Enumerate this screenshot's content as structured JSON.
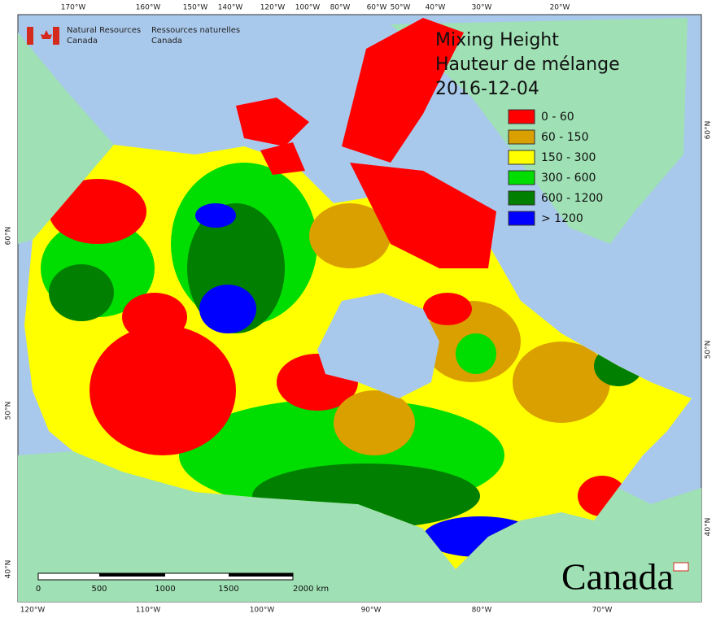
{
  "header": {
    "department_en": [
      "Natural Resources",
      "Canada"
    ],
    "department_fr": [
      "Ressources naturelles",
      "Canada"
    ]
  },
  "title": [
    "Mixing Height",
    "Hauteur de mélange",
    "2016-12-04"
  ],
  "legend": [
    {
      "label": "0 - 60",
      "color": "#ff0000"
    },
    {
      "label": "60 - 150",
      "color": "#daa000"
    },
    {
      "label": "150 - 300",
      "color": "#ffff00"
    },
    {
      "label": "300 - 600",
      "color": "#00dd00"
    },
    {
      "label": "600 - 1200",
      "color": "#007f00"
    },
    {
      "label": "> 1200",
      "color": "#0000ff"
    }
  ],
  "axes": {
    "top": [
      "170°W",
      "160°W",
      "150°W",
      "140°W",
      "120°W",
      "100°W",
      "80°W",
      "60°W",
      "50°W",
      "40°W",
      "30°W",
      "20°W"
    ],
    "bottom": [
      "120°W",
      "110°W",
      "100°W",
      "90°W",
      "80°W",
      "70°W"
    ],
    "left": [
      "60°N",
      "50°N",
      "40°N"
    ],
    "right": [
      "60°N",
      "50°N",
      "40°N"
    ]
  },
  "scale_bar": [
    "0",
    "500",
    "1000",
    "1500",
    "2000 km"
  ],
  "wordmark": "Canada"
}
